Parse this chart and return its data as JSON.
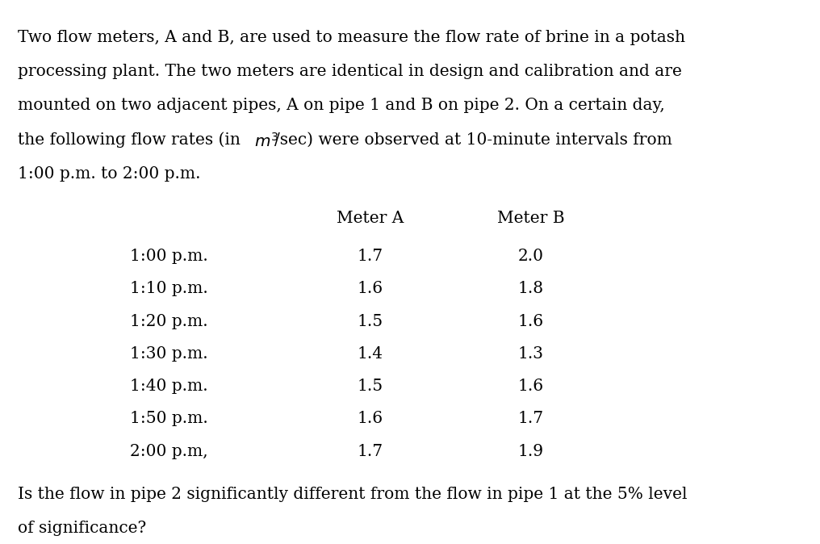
{
  "paragraph1": "Two flow meters, A and B, are used to measure the flow rate of brine in a potash processing plant. The two meters are identical in design and calibration and are mounted on two adjacent pipes, A on pipe 1 and B on pipe 2. On a certain day, the following flow rates (in μ³/sec) were observed at 10-minute intervals from 1:00 p.m. to 2:00 p.m.",
  "paragraph1_parts": [
    "Two flow meters, A and B, are used to measure the flow rate of brine in a potash",
    "processing plant. The two meters are identical in design and calibration and are",
    "mounted on two adjacent pipes, A on pipe 1 and B on pipe 2. On a certain day,",
    "the following flow rates (in ",
    "m³/sec) were observed at 10-minute intervals from",
    "1:00 p.m. to 2:00 p.m."
  ],
  "col_header_time": "",
  "col_header_A": "Meter A",
  "col_header_B": "Meter B",
  "times": [
    "1:00 p.m.",
    "1:10 p.m.",
    "1:20 p.m.",
    "1:30 p.m.",
    "1:40 p.m.",
    "1:50 p.m.",
    "2:00 p.m,"
  ],
  "meter_A": [
    "1.7",
    "1.6",
    "1.5",
    "1.4",
    "1.5",
    "1.6",
    "1.7"
  ],
  "meter_B": [
    "2.0",
    "1.8",
    "1.6",
    "1.3",
    "1.6",
    "1.7",
    "1.9"
  ],
  "footer": "Is the flow in pipe 2 significantly different from the flow in pipe 1 at the 5% level of significance?",
  "footer_parts": [
    "Is the flow in pipe 2 significantly different from the flow in pipe 1 at the 5% level",
    "of significance?"
  ],
  "bg_color": "#ffffff",
  "text_color": "#000000",
  "font_size": 14.5,
  "header_font_size": 14.5
}
